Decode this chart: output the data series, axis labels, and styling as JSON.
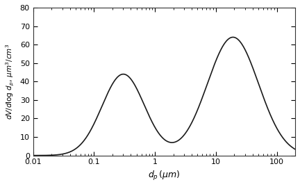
{
  "title": "",
  "xlabel": "$d_p\\,(\\mu m)$",
  "ylabel": "$dV/d\\log d_p,\\,\\mu m^3/cm^3$",
  "xlim": [
    0.01,
    200
  ],
  "ylim": [
    0,
    80
  ],
  "yticks": [
    0,
    10,
    20,
    30,
    40,
    50,
    60,
    70,
    80
  ],
  "bg_color": "#ffffff",
  "line_color": "#1a1a1a",
  "mode1": {
    "mu_log": -0.52,
    "sigma_log": 0.35,
    "amplitude": 44.0
  },
  "mode2": {
    "mu_log": 1.28,
    "sigma_log": 0.42,
    "amplitude": 64.0
  }
}
